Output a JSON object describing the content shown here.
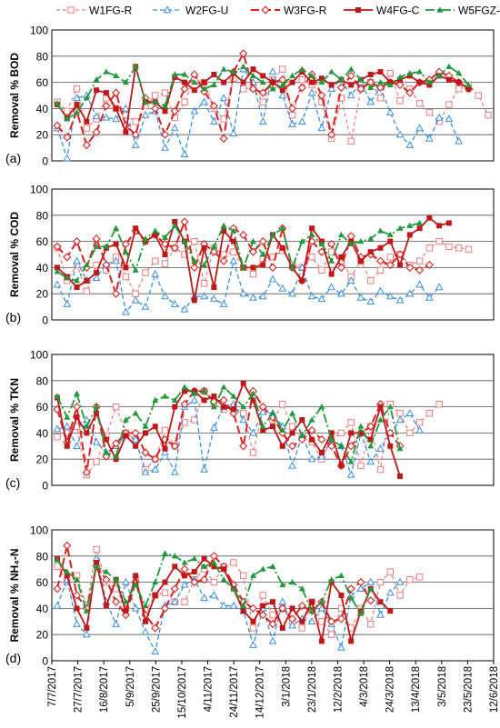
{
  "legend": [
    {
      "name": "W1FG-R",
      "color": "#f07a7a"
    },
    {
      "name": "W2FG-U",
      "color": "#3a8fe0"
    },
    {
      "name": "W3FG-R",
      "color": "#e02020"
    },
    {
      "name": "W4FG-C",
      "color": "#c01818"
    },
    {
      "name": "W5FGZ-R",
      "color": "#1e9a3c"
    }
  ],
  "chart_data": [
    {
      "type": "line",
      "panel_label": "(a)",
      "ylabel": "Removal % BOD",
      "ylim": [
        0,
        100
      ],
      "yticks": [
        0,
        20,
        40,
        60,
        80,
        100
      ],
      "grid": "horizontal",
      "series": [
        {
          "name": "W1FG-R",
          "values": [
            45,
            38,
            55,
            25,
            32,
            48,
            40,
            35,
            30,
            42,
            50,
            52,
            33,
            45,
            62,
            60,
            40,
            32,
            63,
            55,
            56,
            45,
            62,
            70,
            35,
            62,
            58,
            45,
            17,
            48,
            15,
            55,
            60,
            48,
            67,
            46,
            55,
            44,
            37,
            30,
            43,
            55,
            58,
            50,
            35
          ]
        },
        {
          "name": "W2FG-U",
          "values": [
            25,
            2,
            48,
            50,
            34,
            33,
            32,
            40,
            12,
            35,
            38,
            10,
            25,
            5,
            38,
            45,
            30,
            48,
            21,
            70,
            60,
            30,
            68,
            50,
            28,
            30,
            52,
            25,
            55,
            62,
            50,
            60,
            45,
            56,
            37,
            20,
            12,
            25,
            17,
            33,
            32,
            15,
            null,
            null,
            null
          ]
        },
        {
          "name": "W3FG-R",
          "values": [
            27,
            18,
            38,
            12,
            22,
            42,
            52,
            27,
            20,
            48,
            40,
            20,
            38,
            55,
            66,
            53,
            42,
            17,
            68,
            82,
            55,
            52,
            60,
            62,
            40,
            56,
            66,
            50,
            20,
            56,
            65,
            55,
            60,
            56,
            60,
            58,
            52,
            60,
            62,
            68,
            65,
            60,
            55,
            null,
            null
          ]
        },
        {
          "name": "W4FG-C",
          "values": [
            43,
            33,
            43,
            30,
            54,
            52,
            40,
            22,
            72,
            45,
            45,
            38,
            64,
            60,
            54,
            60,
            66,
            60,
            67,
            60,
            70,
            65,
            60,
            54,
            60,
            68,
            60,
            63,
            58,
            62,
            58,
            62,
            66,
            68,
            60,
            62,
            65,
            60,
            58,
            65,
            62,
            60,
            55,
            null,
            null
          ]
        },
        {
          "name": "W5FGZ-R",
          "values": [
            44,
            32,
            37,
            48,
            62,
            68,
            65,
            60,
            72,
            45,
            45,
            42,
            66,
            66,
            60,
            55,
            58,
            70,
            68,
            72,
            65,
            60,
            55,
            58,
            65,
            70,
            65,
            60,
            68,
            62,
            70,
            62,
            56,
            60,
            58,
            64,
            67,
            68,
            60,
            65,
            72,
            67,
            58,
            null,
            null
          ]
        }
      ]
    },
    {
      "type": "line",
      "panel_label": "(b)",
      "ylabel": "Removal % COD",
      "ylim": [
        0,
        100
      ],
      "yticks": [
        0,
        20,
        40,
        60,
        80,
        100
      ],
      "grid": "horizontal",
      "series": [
        {
          "name": "W1FG-R",
          "values": [
            55,
            30,
            42,
            22,
            42,
            38,
            48,
            33,
            20,
            36,
            45,
            43,
            55,
            50,
            60,
            28,
            55,
            50,
            52,
            40,
            35,
            47,
            48,
            53,
            42,
            40,
            48,
            38,
            52,
            45,
            33,
            45,
            30,
            38,
            48,
            50,
            42,
            45,
            55,
            60,
            56,
            55,
            54,
            null,
            null
          ]
        },
        {
          "name": "W2FG-U",
          "values": [
            27,
            12,
            45,
            30,
            32,
            43,
            45,
            6,
            15,
            10,
            35,
            18,
            12,
            8,
            18,
            18,
            16,
            12,
            45,
            20,
            17,
            18,
            31,
            24,
            20,
            40,
            18,
            16,
            25,
            20,
            30,
            17,
            14,
            22,
            18,
            15,
            20,
            27,
            17,
            25,
            null,
            null,
            null,
            null,
            null
          ]
        },
        {
          "name": "W3FG-R",
          "values": [
            56,
            48,
            60,
            40,
            62,
            42,
            20,
            58,
            68,
            60,
            65,
            58,
            55,
            75,
            40,
            58,
            52,
            45,
            70,
            65,
            52,
            60,
            40,
            70,
            40,
            30,
            60,
            52,
            58,
            40,
            64,
            48,
            50,
            45,
            42,
            50,
            40,
            38,
            42,
            null,
            null,
            null,
            null,
            null,
            null
          ]
        },
        {
          "name": "W4FG-C",
          "values": [
            40,
            33,
            25,
            30,
            36,
            55,
            58,
            40,
            70,
            60,
            65,
            50,
            75,
            60,
            15,
            55,
            25,
            68,
            60,
            40,
            40,
            42,
            65,
            55,
            40,
            30,
            70,
            60,
            35,
            48,
            60,
            45,
            52,
            55,
            60,
            42,
            65,
            70,
            78,
            72,
            74,
            null,
            null,
            null,
            null
          ]
        },
        {
          "name": "W5FGZ-R",
          "values": [
            37,
            32,
            30,
            42,
            56,
            56,
            70,
            52,
            38,
            62,
            68,
            63,
            72,
            60,
            45,
            42,
            56,
            72,
            68,
            40,
            60,
            50,
            65,
            70,
            40,
            60,
            65,
            58,
            45,
            65,
            58,
            60,
            62,
            68,
            65,
            70,
            72,
            74,
            null,
            null,
            null,
            null,
            null,
            null,
            null
          ]
        }
      ]
    },
    {
      "type": "line",
      "panel_label": "(c)",
      "ylabel": "Removal % TKN",
      "ylim": [
        0,
        100
      ],
      "yticks": [
        0,
        20,
        40,
        60,
        80,
        100
      ],
      "grid": "horizontal",
      "series": [
        {
          "name": "W1FG-R",
          "values": [
            37,
            40,
            45,
            8,
            18,
            38,
            60,
            40,
            35,
            12,
            20,
            42,
            30,
            48,
            50,
            72,
            63,
            58,
            60,
            55,
            25,
            58,
            50,
            62,
            45,
            38,
            33,
            20,
            35,
            40,
            48,
            15,
            45,
            12,
            62,
            55,
            40,
            48,
            55,
            62,
            null,
            null,
            null,
            null,
            null
          ]
        },
        {
          "name": "W2FG-U",
          "values": [
            43,
            45,
            30,
            50,
            33,
            25,
            30,
            38,
            35,
            10,
            12,
            25,
            10,
            60,
            65,
            12,
            44,
            60,
            62,
            50,
            40,
            56,
            55,
            45,
            15,
            38,
            20,
            22,
            35,
            30,
            8,
            40,
            18,
            28,
            40,
            50,
            55,
            42,
            null,
            null,
            null,
            null,
            null,
            null,
            null
          ]
        },
        {
          "name": "W3FG-R",
          "values": [
            58,
            33,
            60,
            10,
            60,
            22,
            32,
            40,
            40,
            25,
            20,
            35,
            30,
            62,
            72,
            72,
            64,
            65,
            55,
            30,
            72,
            60,
            52,
            40,
            30,
            35,
            42,
            35,
            30,
            15,
            30,
            40,
            45,
            62,
            40,
            30,
            null,
            null,
            null,
            null,
            null,
            null,
            null,
            null,
            null
          ]
        },
        {
          "name": "W4FG-C",
          "values": [
            67,
            30,
            52,
            40,
            55,
            35,
            20,
            38,
            30,
            40,
            45,
            28,
            60,
            72,
            72,
            65,
            68,
            60,
            58,
            78,
            65,
            42,
            45,
            30,
            40,
            50,
            35,
            25,
            40,
            15,
            40,
            40,
            35,
            60,
            30,
            7,
            null,
            null,
            null,
            null,
            null,
            null,
            null,
            null,
            null
          ]
        },
        {
          "name": "W5FGZ-R",
          "values": [
            68,
            52,
            70,
            45,
            60,
            25,
            22,
            50,
            55,
            45,
            65,
            68,
            65,
            75,
            70,
            72,
            60,
            75,
            68,
            60,
            70,
            45,
            55,
            42,
            55,
            38,
            50,
            60,
            35,
            30,
            18,
            45,
            30,
            50,
            60,
            28,
            null,
            null,
            null,
            null,
            null,
            null,
            null,
            null,
            null
          ]
        }
      ]
    },
    {
      "type": "line",
      "panel_label": "(d)",
      "ylabel": "Removal % NH₄-N",
      "ylim": [
        0,
        100
      ],
      "yticks": [
        0,
        20,
        40,
        60,
        80,
        100
      ],
      "grid": "horizontal",
      "series": [
        {
          "name": "W1FG-R",
          "values": [
            72,
            60,
            65,
            42,
            85,
            60,
            55,
            40,
            62,
            38,
            50,
            52,
            45,
            45,
            62,
            70,
            60,
            72,
            75,
            65,
            25,
            50,
            35,
            40,
            30,
            25,
            45,
            30,
            20,
            40,
            25,
            40,
            28,
            60,
            68,
            50,
            62,
            64,
            null,
            null,
            null,
            null,
            null,
            null,
            null
          ]
        },
        {
          "name": "W2FG-U",
          "values": [
            42,
            62,
            28,
            20,
            78,
            45,
            28,
            60,
            40,
            22,
            7,
            42,
            45,
            58,
            62,
            48,
            50,
            42,
            42,
            38,
            12,
            40,
            15,
            45,
            27,
            32,
            30,
            40,
            28,
            10,
            50,
            55,
            60,
            35,
            52,
            60,
            null,
            null,
            null,
            null,
            null,
            null,
            null,
            null,
            null
          ]
        },
        {
          "name": "W3FG-R",
          "values": [
            55,
            88,
            50,
            40,
            72,
            62,
            45,
            35,
            60,
            35,
            25,
            40,
            55,
            70,
            60,
            62,
            80,
            72,
            58,
            45,
            40,
            35,
            28,
            40,
            32,
            42,
            38,
            45,
            30,
            32,
            55,
            60,
            46,
            null,
            null,
            null,
            null,
            null,
            null,
            null,
            null,
            null,
            null,
            null,
            null
          ]
        },
        {
          "name": "W4FG-C",
          "values": [
            78,
            65,
            40,
            25,
            75,
            42,
            62,
            38,
            65,
            30,
            50,
            60,
            72,
            65,
            68,
            78,
            72,
            70,
            55,
            38,
            30,
            42,
            45,
            25,
            40,
            30,
            45,
            15,
            60,
            50,
            15,
            38,
            55,
            45,
            38,
            null,
            null,
            null,
            null,
            null,
            null,
            null,
            null,
            null,
            null
          ]
        },
        {
          "name": "W5FGZ-R",
          "values": [
            77,
            68,
            62,
            38,
            72,
            68,
            62,
            45,
            58,
            42,
            60,
            82,
            80,
            75,
            78,
            72,
            75,
            62,
            55,
            42,
            65,
            70,
            72,
            58,
            60,
            55,
            38,
            45,
            62,
            65,
            48,
            36,
            55,
            null,
            null,
            null,
            null,
            null,
            null,
            null,
            null,
            null,
            null,
            null,
            null
          ]
        }
      ]
    }
  ],
  "x_ticks": [
    "7/7/2017",
    "27/7/2017",
    "16/8/2017",
    "5/9/2017",
    "25/9/2017",
    "15/10/2017",
    "4/11/2017",
    "24/11/2017",
    "14/12/2017",
    "3/1/2018",
    "23/1/2018",
    "12/2/2018",
    "4/3/2018",
    "24/3/2018",
    "13/4/2018",
    "3/5/2018",
    "23/5/2018",
    "12/6/2018"
  ]
}
